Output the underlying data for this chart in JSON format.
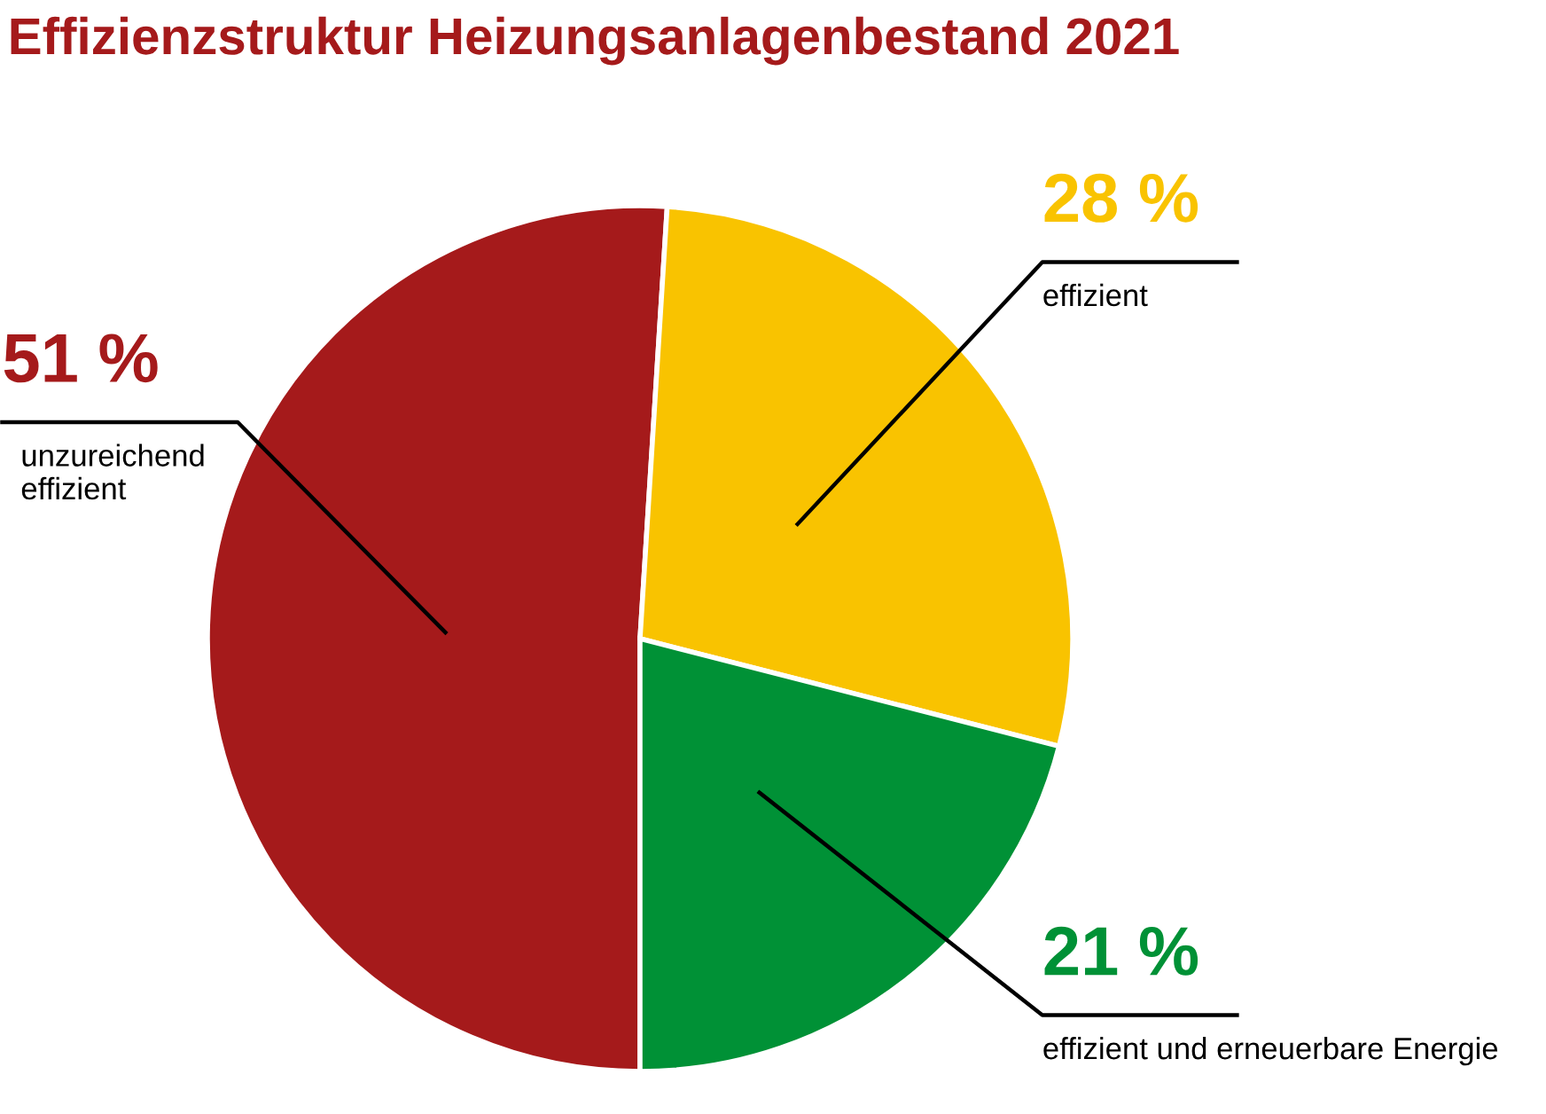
{
  "chart_data": {
    "type": "pie",
    "title": "Effizienzstruktur Heizungsanlagenbestand 2021",
    "categories": [
      "unzureichend effizient",
      "effizient",
      "effizient und erneuerbare Energie"
    ],
    "values": [
      51,
      28,
      21
    ],
    "colors": [
      "#a51a1b",
      "#f9c300",
      "#009136"
    ],
    "value_labels": [
      "51 %",
      "28 %",
      "21 %"
    ]
  }
}
